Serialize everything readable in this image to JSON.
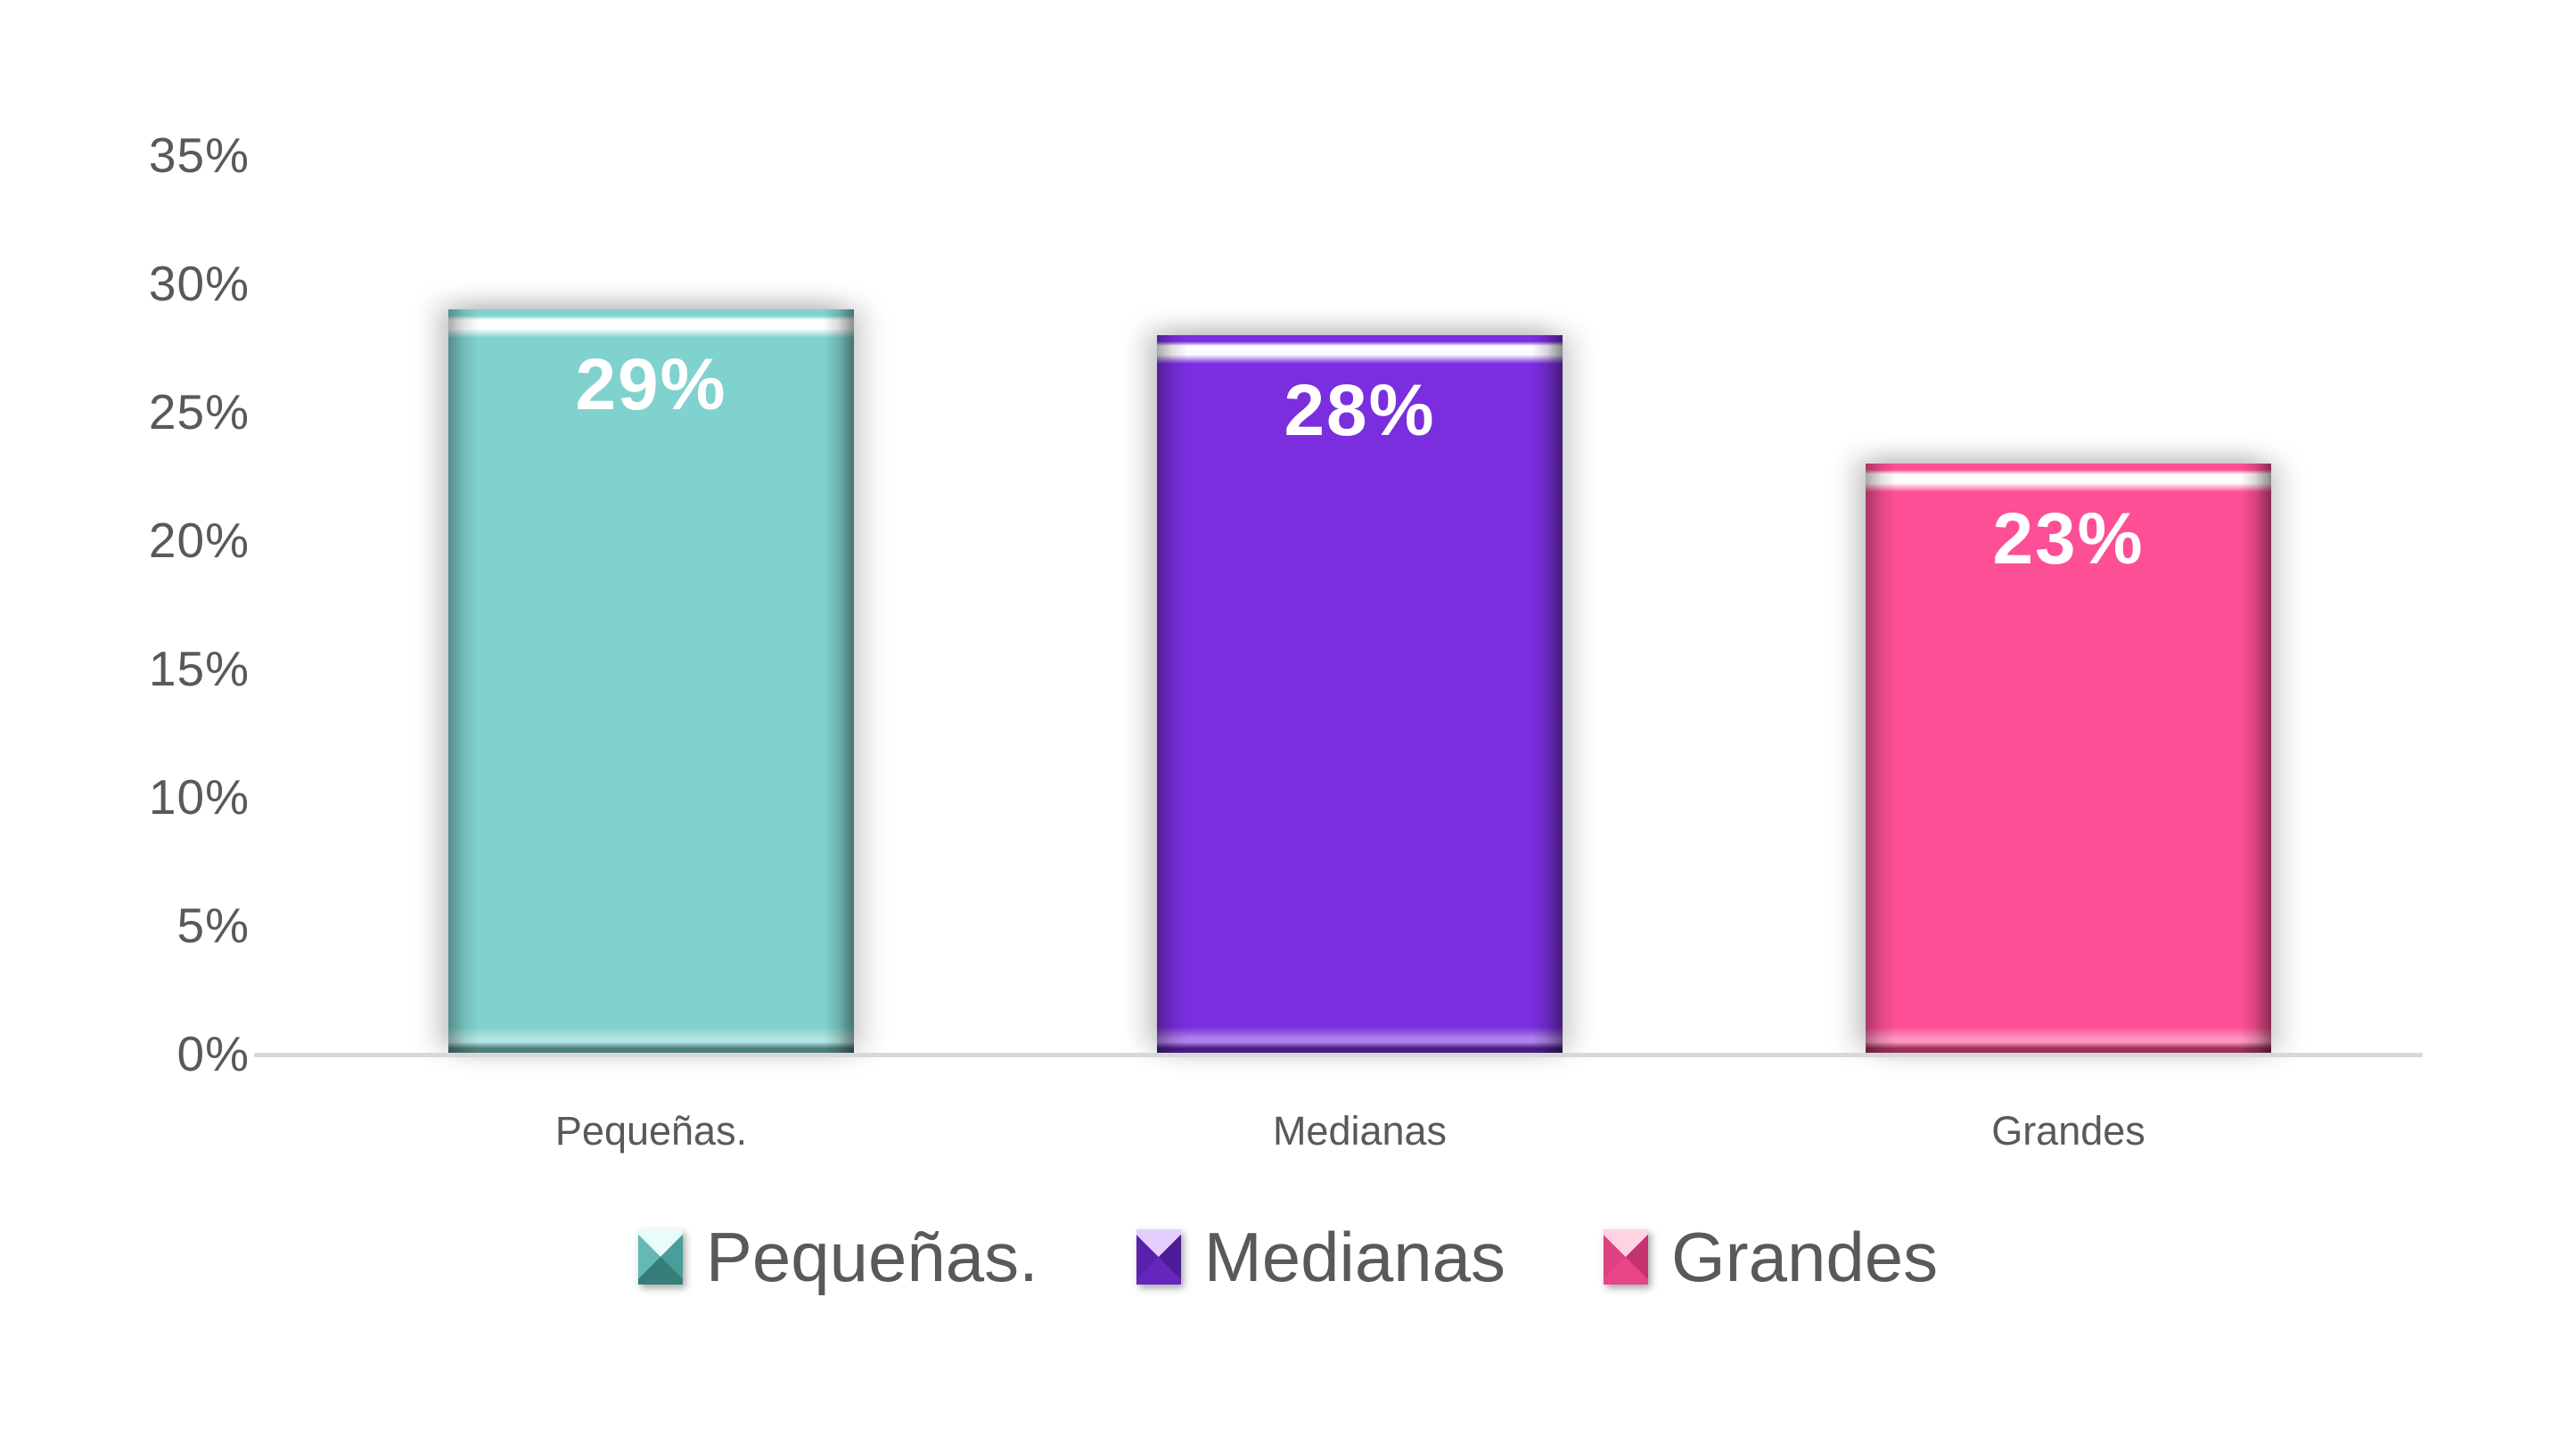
{
  "page": {
    "background": "#ffffff",
    "text_color": "#595959"
  },
  "chart_data": {
    "type": "bar",
    "title": "",
    "xlabel": "",
    "ylabel": "",
    "categories": [
      "Pequeñas.",
      "Medianas",
      "Grandes"
    ],
    "values": [
      29,
      28,
      23
    ],
    "data_labels": [
      "29%",
      "28%",
      "23%"
    ],
    "yticks": [
      "0%",
      "5%",
      "10%",
      "15%",
      "20%",
      "25%",
      "30%",
      "35%"
    ],
    "ytick_values": [
      0,
      5,
      10,
      15,
      20,
      25,
      30,
      35
    ],
    "ylim": [
      0,
      35
    ],
    "grid": false,
    "legend_position": "bottom",
    "legend": [
      "Pequeñas.",
      "Medianas",
      "Grandes"
    ],
    "axis_line_color": "#D8D8D8",
    "tick_text_color": "#595959",
    "data_label_color": "#ffffff",
    "series": [
      {
        "name": "Pequeñas.",
        "value": 29,
        "label": "29%",
        "color": "#80D2CE",
        "facets": {
          "top": "#e9fbfa",
          "left": "#64b9b4",
          "right": "#4a9e9a",
          "bottom": "#357e7a"
        }
      },
      {
        "name": "Medianas",
        "value": 28,
        "label": "28%",
        "color": "#7A2EDE",
        "facets": {
          "top": "#e5ceff",
          "left": "#5a21ad",
          "right": "#4c1b96",
          "bottom": "#6526bd"
        }
      },
      {
        "name": "Grandes",
        "value": 23,
        "label": "23%",
        "color": "#FD4F95",
        "facets": {
          "top": "#ffd2e4",
          "left": "#dd4181",
          "right": "#c53270",
          "bottom": "#e84586"
        }
      }
    ]
  }
}
